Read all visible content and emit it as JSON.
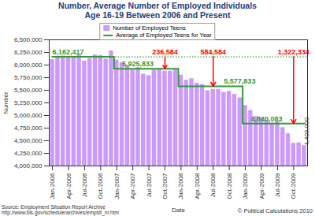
{
  "chart_data": {
    "type": "bar",
    "title": "Number, Average Number of Employed Individuals\nAge 16-19 Between 2006 and Present",
    "x_label": "Date",
    "y_label": "Number",
    "categories": [
      "Jan-2006",
      null,
      null,
      "Apr-2006",
      null,
      null,
      "Jul-2006",
      null,
      null,
      "Oct-2006",
      null,
      null,
      "Jan-2007",
      null,
      null,
      "Apr-2007",
      null,
      null,
      "Jul-2007",
      null,
      null,
      "Oct-2007",
      null,
      null,
      "Jan-2008",
      null,
      null,
      "Apr-2008",
      null,
      null,
      "Jul-2008",
      null,
      null,
      "Oct-2008",
      null,
      null,
      "Jan-2009",
      null,
      null,
      "Apr-2009",
      null,
      null,
      "Jul-2009",
      null,
      null,
      "Oct-2009",
      null,
      null
    ],
    "series": [
      {
        "name": "Number of Employed Teens",
        "type": "bar",
        "color": "#cc99ff",
        "values": [
          6110000,
          6160000,
          6180000,
          6150000,
          6140000,
          6210000,
          6080000,
          6130000,
          6200000,
          6190000,
          6120000,
          6280000,
          6100000,
          6050000,
          5990000,
          5900000,
          5950000,
          5820000,
          5790000,
          5900000,
          5920000,
          5880000,
          5880000,
          5900000,
          5800000,
          5700000,
          5730000,
          5640000,
          5610000,
          5490000,
          5520000,
          5520000,
          5460000,
          5480000,
          5420000,
          5350000,
          5200000,
          5100000,
          4980000,
          4960000,
          4910000,
          4850000,
          4880000,
          4760000,
          4640000,
          4450000,
          4460000,
          4403000
        ],
        "value_labels": [
          null,
          null,
          null,
          null,
          null,
          null,
          null,
          null,
          null,
          null,
          null,
          null,
          null,
          null,
          null,
          null,
          null,
          null,
          null,
          null,
          null,
          null,
          null,
          null,
          null,
          null,
          null,
          null,
          null,
          null,
          null,
          null,
          null,
          null,
          null,
          null,
          null,
          null,
          null,
          null,
          null,
          null,
          null,
          null,
          null,
          null,
          null,
          "4,403,000"
        ]
      },
      {
        "name": "Average of Employed Teens for Year",
        "type": "line",
        "color": "#339933",
        "values": [
          6162417,
          6162417,
          6162417,
          6162417,
          6162417,
          6162417,
          6162417,
          6162417,
          6162417,
          6162417,
          6162417,
          6162417,
          5925833,
          5925833,
          5925833,
          5925833,
          5925833,
          5925833,
          5925833,
          5925833,
          5925833,
          5925833,
          5925833,
          5925833,
          5577833,
          5577833,
          5577833,
          5577833,
          5577833,
          5577833,
          5577833,
          5577833,
          5577833,
          5577833,
          5577833,
          5577833,
          4840083,
          4840083,
          4840083,
          4840083,
          4840083,
          4840083,
          4840083,
          4840083,
          4840083,
          4840083,
          4840083,
          4840083
        ],
        "value_labels": [
          "6,162,417",
          null,
          null,
          null,
          null,
          null,
          null,
          null,
          null,
          null,
          null,
          null,
          null,
          "5,925,833",
          null,
          null,
          null,
          null,
          null,
          null,
          null,
          null,
          null,
          null,
          null,
          null,
          null,
          null,
          null,
          null,
          null,
          null,
          "5,577,833",
          null,
          null,
          null,
          null,
          "4,840,083",
          null,
          null,
          null,
          null,
          null,
          null,
          null,
          null,
          null,
          null
        ]
      }
    ],
    "reference_line": {
      "value": 6162417,
      "color": "#339933",
      "line_style": "dotted"
    },
    "differences": {
      "color": "#ff0000",
      "items": [
        {
          "x": "Oct-2007",
          "value": 236584,
          "label": "236,584"
        },
        {
          "x": "Jul-2008",
          "value": 584584,
          "label": "584,584"
        },
        {
          "x": "Oct-2009",
          "value": 1322334,
          "label": "1,322,334"
        }
      ]
    },
    "source": [
      "Source: Employment Situation Report Archive",
      "http://www.bls.gov/schedule/archives/empsit_nr.htm"
    ],
    "credit": "© Political Calculations 2010",
    "ylim": [
      4000000,
      6500000
    ],
    "yticks": [
      {
        "value": 4000000,
        "label": "4,000,000"
      },
      {
        "value": 4250000,
        "label": "4,250,000"
      },
      {
        "value": 4500000,
        "label": "4,500,000"
      },
      {
        "value": 4750000,
        "label": "4,750,000"
      },
      {
        "value": 5000000,
        "label": "5,000,000"
      },
      {
        "value": 5250000,
        "label": "5,250,000"
      },
      {
        "value": 5500000,
        "label": "5,500,000"
      },
      {
        "value": 5750000,
        "label": "5,750,000"
      },
      {
        "value": 6000000,
        "label": "6,000,000"
      },
      {
        "value": 6250000,
        "label": "6,250,000"
      },
      {
        "value": 6500000,
        "label": "6,500,000"
      }
    ],
    "grid": false,
    "legend": "top"
  }
}
